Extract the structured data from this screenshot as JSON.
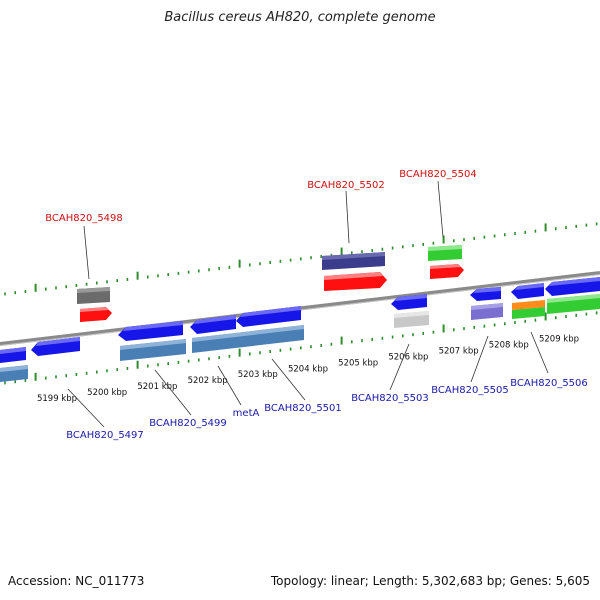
{
  "title": "Bacillus cereus AH820, complete genome",
  "footer": {
    "accession": "Accession: NC_011773",
    "summary": "Topology: linear; Length: 5,302,683 bp; Genes: 5,605"
  },
  "colors": {
    "backbone": "#8a8a8a",
    "tick": "#2e8b2e",
    "forward_label": "#cc1111",
    "reverse_label": "#1a1aa8",
    "cds_blue": "#1616e8",
    "rna_steel": "#4a7fb5",
    "gray": "#6b6b6b",
    "red": "#ff1010",
    "purple": "#3c3c8c",
    "green": "#33cc33",
    "light_gray": "#c8c8c8",
    "lavender": "#7a6fd0",
    "orange": "#ff8c1a"
  },
  "scale": {
    "unit": "kbp",
    "labels": [
      "5199 kbp",
      "5200 kbp",
      "5201 kbp",
      "5202 kbp",
      "5203 kbp",
      "5204 kbp",
      "5205 kbp",
      "5206 kbp",
      "5207 kbp",
      "5208 kbp",
      "5209 kbp"
    ]
  },
  "gene_labels": {
    "forward": [
      "BCAH820_5498",
      "BCAH820_5502",
      "BCAH820_5504"
    ],
    "reverse": [
      "BCAH820_5497",
      "BCAH820_5499",
      "metA",
      "BCAH820_5501",
      "BCAH820_5503",
      "BCAH820_5505",
      "BCAH820_5506"
    ]
  }
}
